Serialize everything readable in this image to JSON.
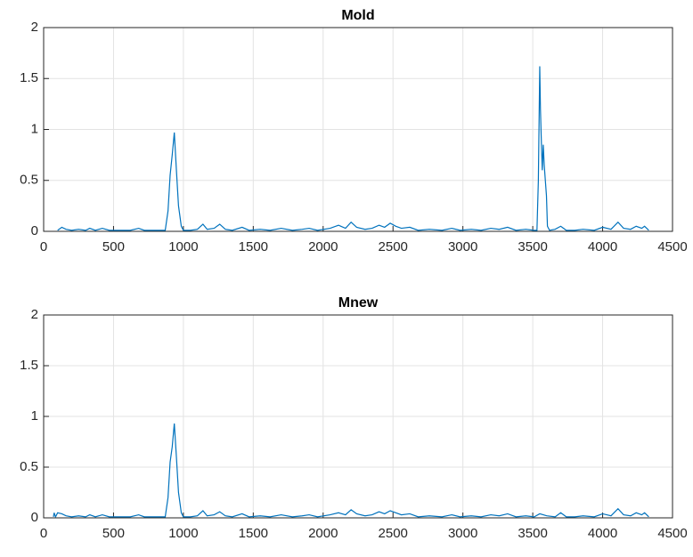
{
  "chart_data": [
    {
      "type": "line",
      "title": "Mold",
      "color": "#0072bd",
      "x": [
        100,
        130,
        160,
        200,
        250,
        300,
        330,
        370,
        420,
        470,
        550,
        620,
        680,
        720,
        800,
        870,
        890,
        905,
        920,
        935,
        950,
        965,
        985,
        1000,
        1050,
        1100,
        1140,
        1170,
        1220,
        1260,
        1300,
        1350,
        1420,
        1470,
        1550,
        1620,
        1700,
        1780,
        1850,
        1900,
        1960,
        2050,
        2110,
        2160,
        2200,
        2240,
        2300,
        2350,
        2400,
        2440,
        2480,
        2520,
        2560,
        2620,
        2680,
        2760,
        2850,
        2920,
        2980,
        3060,
        3130,
        3200,
        3260,
        3320,
        3380,
        3450,
        3510,
        3530,
        3540,
        3550,
        3555,
        3560,
        3568,
        3575,
        3582,
        3590,
        3598,
        3605,
        3620,
        3660,
        3700,
        3740,
        3800,
        3860,
        3940,
        4000,
        4060,
        4110,
        4150,
        4200,
        4240,
        4280,
        4300,
        4330
      ],
      "values": [
        0.01,
        0.04,
        0.02,
        0.01,
        0.02,
        0.01,
        0.03,
        0.01,
        0.03,
        0.01,
        0.01,
        0.01,
        0.03,
        0.01,
        0.01,
        0.01,
        0.2,
        0.55,
        0.75,
        0.97,
        0.6,
        0.25,
        0.05,
        0.01,
        0.01,
        0.02,
        0.07,
        0.02,
        0.03,
        0.07,
        0.02,
        0.01,
        0.04,
        0.01,
        0.02,
        0.01,
        0.03,
        0.01,
        0.02,
        0.03,
        0.01,
        0.03,
        0.06,
        0.03,
        0.09,
        0.04,
        0.02,
        0.03,
        0.06,
        0.04,
        0.08,
        0.05,
        0.03,
        0.04,
        0.01,
        0.02,
        0.01,
        0.03,
        0.01,
        0.02,
        0.01,
        0.03,
        0.02,
        0.04,
        0.01,
        0.02,
        0.01,
        0.01,
        0.5,
        1.62,
        1.2,
        0.95,
        0.6,
        0.85,
        0.65,
        0.5,
        0.35,
        0.05,
        0.01,
        0.02,
        0.05,
        0.01,
        0.01,
        0.02,
        0.01,
        0.04,
        0.02,
        0.09,
        0.03,
        0.02,
        0.05,
        0.03,
        0.05,
        0.01
      ],
      "xlim": [
        0,
        4500
      ],
      "xticks": [
        0,
        500,
        1000,
        1500,
        2000,
        2500,
        3000,
        3500,
        4000,
        4500
      ],
      "ylim": [
        0,
        2
      ],
      "yticks": [
        0,
        0.5,
        1,
        1.5,
        2
      ],
      "grid": true
    },
    {
      "type": "line",
      "title": "Mnew",
      "color": "#0072bd",
      "x": [
        70,
        75,
        85,
        100,
        130,
        160,
        200,
        250,
        300,
        330,
        370,
        420,
        470,
        550,
        620,
        680,
        720,
        800,
        870,
        890,
        905,
        920,
        935,
        950,
        965,
        985,
        1000,
        1050,
        1100,
        1140,
        1170,
        1220,
        1260,
        1300,
        1350,
        1420,
        1470,
        1550,
        1620,
        1700,
        1780,
        1850,
        1900,
        1960,
        2050,
        2110,
        2160,
        2200,
        2240,
        2300,
        2350,
        2400,
        2440,
        2480,
        2520,
        2560,
        2620,
        2680,
        2760,
        2850,
        2920,
        2980,
        3060,
        3130,
        3200,
        3260,
        3320,
        3380,
        3450,
        3510,
        3550,
        3600,
        3660,
        3700,
        3740,
        3800,
        3860,
        3940,
        4000,
        4060,
        4110,
        4150,
        4200,
        4240,
        4280,
        4300,
        4330
      ],
      "values": [
        0.01,
        0.05,
        0.01,
        0.05,
        0.04,
        0.02,
        0.01,
        0.02,
        0.01,
        0.03,
        0.01,
        0.03,
        0.01,
        0.01,
        0.01,
        0.03,
        0.01,
        0.01,
        0.01,
        0.2,
        0.55,
        0.7,
        0.93,
        0.6,
        0.25,
        0.05,
        0.01,
        0.01,
        0.02,
        0.07,
        0.02,
        0.03,
        0.06,
        0.02,
        0.01,
        0.04,
        0.01,
        0.02,
        0.01,
        0.03,
        0.01,
        0.02,
        0.03,
        0.01,
        0.03,
        0.05,
        0.03,
        0.08,
        0.04,
        0.02,
        0.03,
        0.06,
        0.04,
        0.07,
        0.05,
        0.03,
        0.04,
        0.01,
        0.02,
        0.01,
        0.03,
        0.01,
        0.02,
        0.01,
        0.03,
        0.02,
        0.04,
        0.01,
        0.02,
        0.01,
        0.04,
        0.02,
        0.01,
        0.05,
        0.01,
        0.01,
        0.02,
        0.01,
        0.04,
        0.02,
        0.09,
        0.03,
        0.02,
        0.05,
        0.03,
        0.05,
        0.01
      ],
      "xlim": [
        0,
        4500
      ],
      "xticks": [
        0,
        500,
        1000,
        1500,
        2000,
        2500,
        3000,
        3500,
        4000,
        4500
      ],
      "ylim": [
        0,
        2
      ],
      "yticks": [
        0,
        0.5,
        1,
        1.5,
        2
      ],
      "grid": true
    }
  ]
}
